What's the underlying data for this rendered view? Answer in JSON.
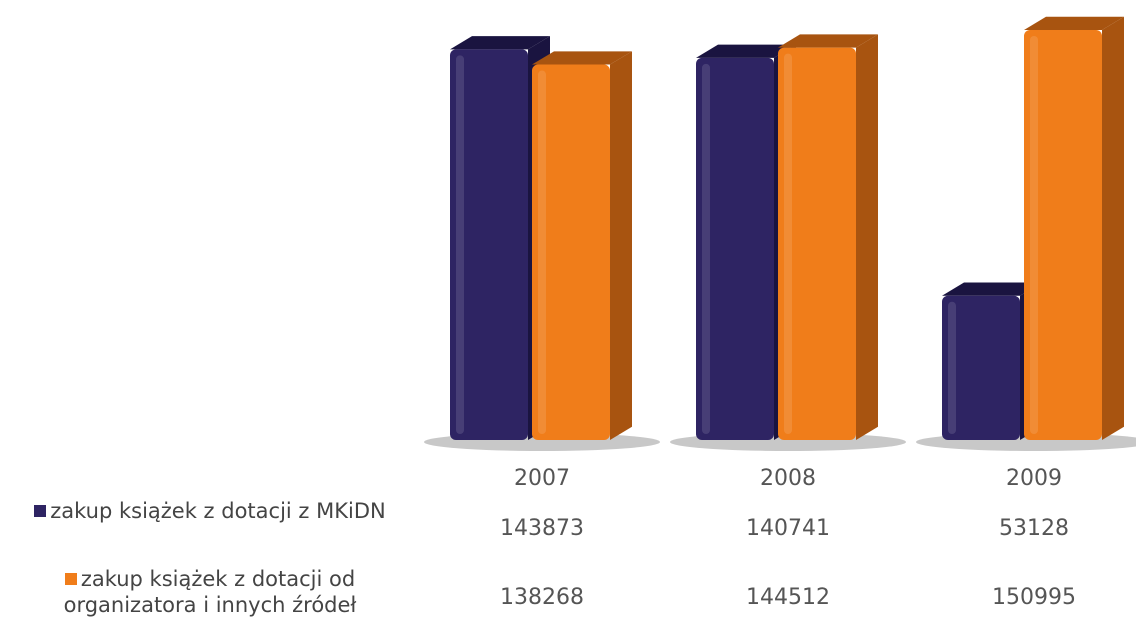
{
  "chart_data": {
    "type": "bar",
    "categories": [
      "2007",
      "2008",
      "2009"
    ],
    "series": [
      {
        "name": "zakup książek z dotacji z MKiDN",
        "values": [
          143873,
          140741,
          53128
        ],
        "color": "#2e2463",
        "side_color": "#1a1440"
      },
      {
        "name": "zakup książek z dotacji od organizatora i innych źródeł",
        "values": [
          138268,
          144512,
          150995
        ],
        "color": "#f07d1a",
        "side_color": "#a85410"
      }
    ],
    "ylim": [
      0,
      150995
    ],
    "legend_position": "bottom-left data table",
    "grid": false,
    "title": "",
    "xlabel": "",
    "ylabel": ""
  }
}
